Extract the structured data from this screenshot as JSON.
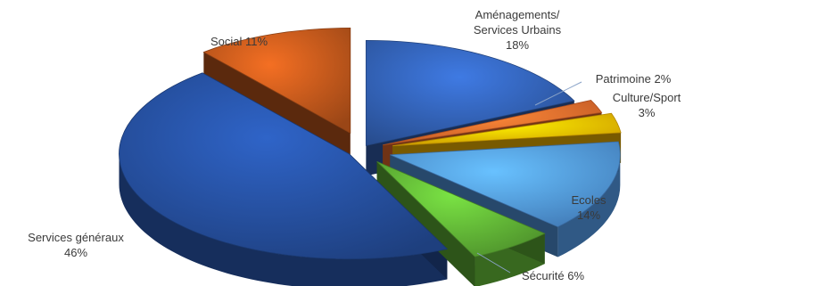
{
  "chart_data": {
    "type": "pie",
    "style": "3d-exploded",
    "legend": "none",
    "slices": [
      {
        "name": "Aménagements/ Services Urbains",
        "line1": "Aménagements/",
        "line2": "Services Urbains",
        "pct_label": "18%",
        "value": 18,
        "color": "#2f5aa8"
      },
      {
        "name": "Patrimoine",
        "line1": "Patrimoine 2%",
        "line2": "",
        "pct_label": "2%",
        "value": 2,
        "color": "#e0662a"
      },
      {
        "name": "Culture/Sport",
        "line1": "Culture/Sport",
        "line2": "",
        "pct_label": "3%",
        "value": 3,
        "color": "#f0b400"
      },
      {
        "name": "Ecoles",
        "line1": "Ecoles",
        "line2": "",
        "pct_label": "14%",
        "value": 14,
        "color": "#4d8fd6"
      },
      {
        "name": "Sécurité",
        "line1": "Sécurité 6%",
        "line2": "",
        "pct_label": "6%",
        "value": 6,
        "color": "#5aa832"
      },
      {
        "name": "Services généraux",
        "line1": "Services généraux",
        "line2": "",
        "pct_label": "46%",
        "value": 46,
        "color": "#234a94"
      },
      {
        "name": "Social",
        "line1": "Social 11%",
        "line2": "",
        "pct_label": "11%",
        "value": 11,
        "color": "#b5521a"
      }
    ]
  }
}
